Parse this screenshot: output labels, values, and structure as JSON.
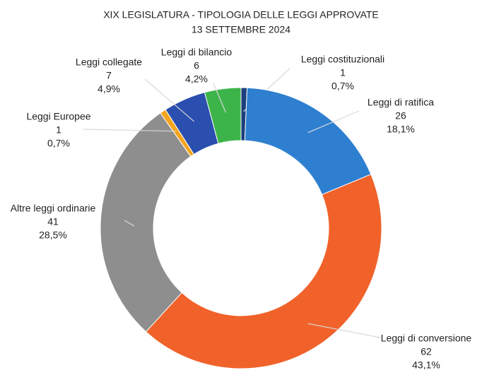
{
  "chart_data": {
    "type": "donut",
    "title": "XIX LEGISLATURA - TIPOLOGIA DELLE LEGGI APPROVATE",
    "subtitle": "13 SETTEMBRE 2024",
    "categories": [
      "Leggi costituzionali",
      "Leggi di ratifica",
      "Leggi di conversione",
      "Altre leggi ordinarie",
      "Leggi Europee",
      "Leggi collegate",
      "Leggi di bilancio"
    ],
    "values": [
      1,
      26,
      62,
      41,
      1,
      7,
      6
    ],
    "percent_labels": [
      "0,7%",
      "18,1%",
      "43,1%",
      "28,5%",
      "0,7%",
      "4,9%",
      "4,2%"
    ],
    "colors": [
      "#1d3f7c",
      "#2e7fd0",
      "#f0622a",
      "#8e8e8e",
      "#f3a51f",
      "#2a4fae",
      "#3db44a"
    ]
  }
}
